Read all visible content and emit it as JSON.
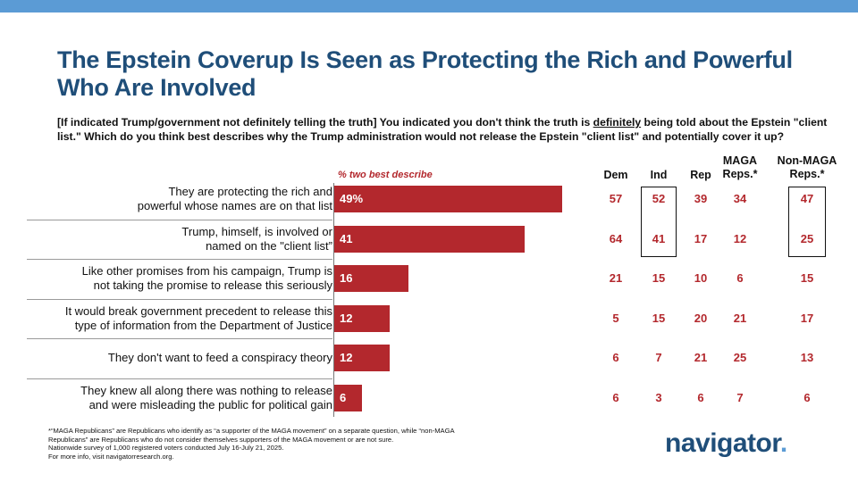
{
  "header": {
    "title_line1": "The Epstein Coverup Is Seen as Protecting the Rich and Powerful",
    "title_line2": "Who Are Involved",
    "question_part1": "[If indicated Trump/government not definitely telling the truth] You indicated you don't think the truth is ",
    "question_emphasis": "definitely",
    "question_part2": " being told about the Epstein \"client list.\" Which do you think best describes why the Trump administration would not release the Epstein \"client list\" and potentially cover it up?"
  },
  "colors": {
    "bar": "#b3282d",
    "title": "#1f4e79",
    "accent": "#5b9bd5"
  },
  "chart_data": {
    "type": "bar",
    "orientation": "horizontal",
    "axis_label": "% two best describe",
    "categories": [
      {
        "line1": "They are protecting the rich and",
        "line2": "powerful whose names are on that list"
      },
      {
        "line1": "Trump, himself, is involved or",
        "line2": "named on the \"client list”"
      },
      {
        "line1": "Like other promises from his campaign, Trump is",
        "line2": "not taking the promise to release this seriously"
      },
      {
        "line1": "It would break government precedent to release this",
        "line2": "type of information from the Department of Justice"
      },
      {
        "line1": "They don't want to feed a conspiracy theory",
        "line2": ""
      },
      {
        "line1": "They knew all along there was nothing to release",
        "line2": "and were misleading the public for political gain"
      }
    ],
    "values": [
      49,
      41,
      16,
      12,
      12,
      6
    ],
    "value_labels": [
      "49%",
      "41",
      "16",
      "12",
      "12",
      "6"
    ],
    "xlim": [
      0,
      100
    ],
    "crosstab": {
      "columns": [
        {
          "line1": "Dem",
          "line2": ""
        },
        {
          "line1": "Ind",
          "line2": ""
        },
        {
          "line1": "Rep",
          "line2": ""
        },
        {
          "line1": "MAGA",
          "line2": "Reps.*"
        },
        {
          "line1": "Non-MAGA",
          "line2": "Reps.*"
        }
      ],
      "rows": [
        [
          "57",
          "52",
          "39",
          "34",
          "47"
        ],
        [
          "64",
          "41",
          "17",
          "12",
          "25"
        ],
        [
          "21",
          "15",
          "10",
          "6",
          "15"
        ],
        [
          "5",
          "15",
          "20",
          "21",
          "17"
        ],
        [
          "6",
          "7",
          "21",
          "25",
          "13"
        ],
        [
          "6",
          "3",
          "6",
          "7",
          "6"
        ]
      ],
      "highlighted": [
        {
          "column": 1,
          "rows": [
            0,
            1
          ]
        },
        {
          "column": 4,
          "rows": [
            0,
            1
          ]
        }
      ]
    }
  },
  "footnote": {
    "line1": "*“MAGA Republicans” are Republicans who identify as “a supporter of the MAGA movement” on a separate question, while “non-MAGA",
    "line2": "Republicans” are Republicans who do not consider themselves supporters of the MAGA movement or are not sure.",
    "line3": "Nationwide survey of 1,000 registered voters conducted July 16-July 21, 2025.",
    "line4": "For more info, visit navigatorresearch.org."
  },
  "logo": {
    "text": "navigator",
    "dot": "."
  }
}
